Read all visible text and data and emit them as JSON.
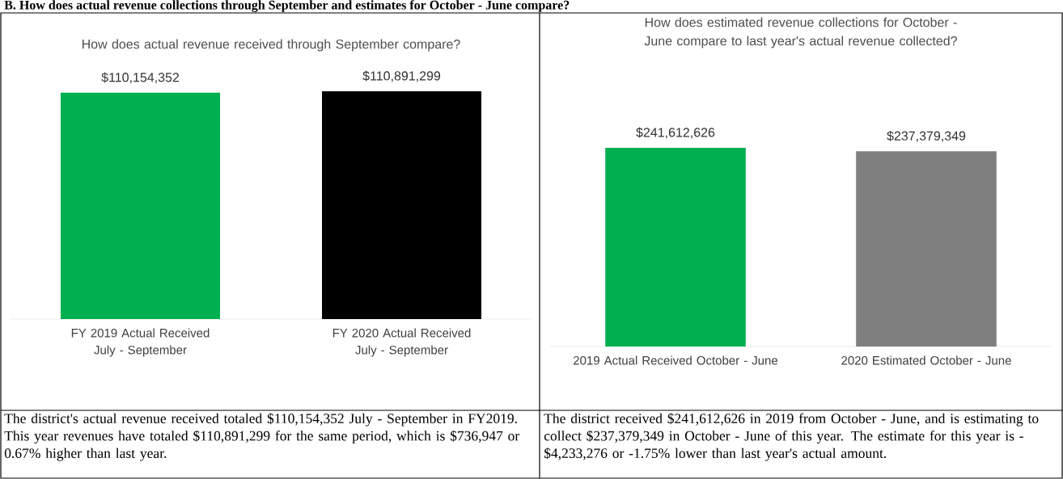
{
  "chart_data": [
    {
      "type": "bar",
      "title": "How does actual revenue received through September compare?",
      "categories": [
        "FY 2019 Actual Received July - September",
        "FY 2020 Actual Received July - September"
      ],
      "values": [
        110154352,
        110891299
      ],
      "colors": [
        "#00b050",
        "#000000"
      ],
      "value_labels": [
        "$110,154,352",
        "$110,891,299"
      ],
      "annotations": [
        "B.  How does actual revenue collections through September and estimates for October - June compare?",
        "The district's actual revenue received totaled $110,154,352 July - September in FY2019.  This year revenues have totaled $110,891,299 for the same period, which is $736,947 or 0.67% higher than last year."
      ]
    },
    {
      "type": "bar",
      "title": "How does estimated revenue collections for October - June compare to last year's actual revenue collected?",
      "categories": [
        "2019 Actual Received October - June",
        "2020 Estimated October - June"
      ],
      "values": [
        241612626,
        237379349
      ],
      "colors": [
        "#00b050",
        "#7f7f7f"
      ],
      "value_labels": [
        "$241,612,626",
        "$237,379,349"
      ],
      "annotations": [
        "The district received $241,612,626 in 2019 from October - June, and is estimating to collect $237,379,349 in October - June of this year.  The estimate for this year is -$4,233,276 or -1.75% lower than last year's actual amount."
      ]
    }
  ]
}
